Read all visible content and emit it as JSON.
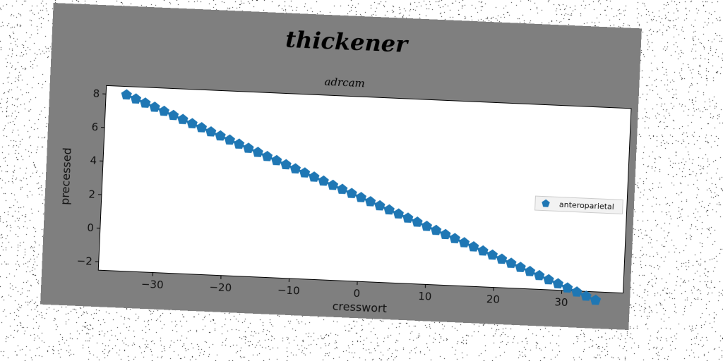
{
  "chart_data": {
    "type": "line",
    "title": "thickener",
    "subtitle": "adrcam",
    "xlabel": "cresswort",
    "ylabel": "precessed",
    "xlim": [
      -38,
      39
    ],
    "ylim": [
      -2.5,
      8.5
    ],
    "xticks": [
      -30,
      -20,
      -10,
      0,
      10,
      20,
      30
    ],
    "yticks": [
      -2,
      0,
      2,
      4,
      6,
      8
    ],
    "grid": false,
    "legend_position": "right",
    "series": [
      {
        "name": "anteroparietal",
        "color": "#1f77b4",
        "marker": "pentagon",
        "x_start": -35,
        "x_end": 35,
        "y_start": 8,
        "y_end": -3,
        "num_points": 51
      }
    ]
  }
}
